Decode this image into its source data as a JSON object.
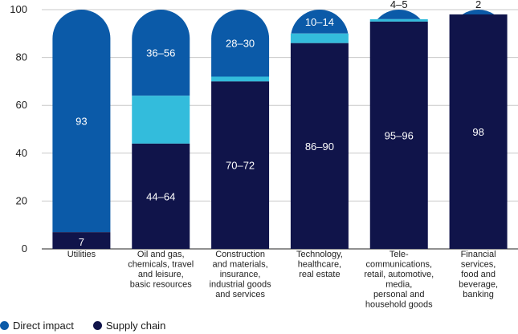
{
  "colors": {
    "direct": "#0b5aa8",
    "supply": "#10144a",
    "range": "#33bcdc",
    "grid": "#c9c9c9",
    "axis": "#222222"
  },
  "legend": [
    {
      "label": "Direct impact",
      "color": "#0b5aa8"
    },
    {
      "label": "Supply chain",
      "color": "#10144a"
    }
  ],
  "chart_data": {
    "type": "bar",
    "stacked": true,
    "ylim": [
      0,
      100
    ],
    "yticks": [
      0,
      20,
      40,
      60,
      80,
      100
    ],
    "grid": true,
    "legend_position": "bottom-left",
    "categories": [
      [
        "Utilities"
      ],
      [
        "Oil and gas,",
        "chemicals, travel",
        "and leisure,",
        "basic resources"
      ],
      [
        "Construction",
        "and materials,",
        "insurance,",
        "industrial goods",
        "and services"
      ],
      [
        "Technology,",
        "healthcare,",
        "real estate"
      ],
      [
        "Tele-",
        "communications,",
        "retail, automotive,",
        "media,",
        "personal and",
        "household goods"
      ],
      [
        "Financial",
        "services,",
        "food and",
        "beverage,",
        "banking"
      ]
    ],
    "series": [
      {
        "name": "Supply chain",
        "low": [
          7,
          44,
          70,
          86,
          95,
          98
        ],
        "high": [
          7,
          64,
          72,
          90,
          96,
          98
        ],
        "labels": [
          "7",
          "44–64",
          "70–72",
          "86–90",
          "95–96",
          "98"
        ]
      },
      {
        "name": "Direct impact",
        "low": [
          93,
          36,
          28,
          10,
          4,
          2
        ],
        "high": [
          93,
          56,
          30,
          14,
          5,
          2
        ],
        "labels": [
          "93",
          "36–56",
          "28–30",
          "10–14",
          "4–5",
          "2"
        ]
      }
    ]
  }
}
